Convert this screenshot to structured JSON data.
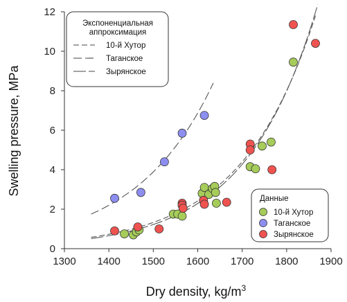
{
  "chart_data": {
    "type": "scatter",
    "title": "",
    "xlabel": "Dry density, kg/m",
    "xlabel_superscript": "3",
    "ylabel": "Swelling pressure, MPa",
    "xlim": [
      1300,
      1900
    ],
    "ylim": [
      0,
      12
    ],
    "x_ticks": [
      "1300",
      "1400",
      "1500",
      "1600",
      "1700",
      "1800",
      "1900"
    ],
    "y_ticks": [
      "0",
      "2",
      "4",
      "6",
      "8",
      "10",
      "12"
    ],
    "grid": false,
    "legends": {
      "lines": {
        "placement": "top-left",
        "title_lines": [
          "Экспоненциальная",
          "аппроксимация"
        ],
        "entries": [
          {
            "label": "10-й Хутор",
            "dash": "long-short"
          },
          {
            "label": "Таганское",
            "dash": "long"
          },
          {
            "label": "Зырянское",
            "dash": "solid-long"
          }
        ]
      },
      "points": {
        "placement": "bottom-right",
        "title": "Данные",
        "entries": [
          {
            "label": "10-й Хутор",
            "color": "#a6cc5a"
          },
          {
            "label": "Таганское",
            "color": "#8d8ef0"
          },
          {
            "label": "Зырянское",
            "color": "#ef5350"
          }
        ]
      }
    },
    "series": [
      {
        "name": "10-й Хутор",
        "color": "#a6cc5a",
        "points": [
          [
            1435,
            0.75
          ],
          [
            1455,
            0.7
          ],
          [
            1462,
            0.85
          ],
          [
            1468,
            0.95
          ],
          [
            1545,
            1.75
          ],
          [
            1555,
            1.75
          ],
          [
            1565,
            1.65
          ],
          [
            1610,
            2.8
          ],
          [
            1615,
            3.1
          ],
          [
            1625,
            2.75
          ],
          [
            1633,
            3.05
          ],
          [
            1638,
            3.15
          ],
          [
            1640,
            2.85
          ],
          [
            1642,
            2.3
          ],
          [
            1718,
            4.15
          ],
          [
            1730,
            4.05
          ],
          [
            1745,
            5.2
          ],
          [
            1765,
            5.4
          ],
          [
            1815,
            9.45
          ]
        ]
      },
      {
        "name": "Таганское",
        "color": "#8d8ef0",
        "points": [
          [
            1413,
            2.55
          ],
          [
            1472,
            2.85
          ],
          [
            1525,
            4.4
          ],
          [
            1565,
            5.85
          ],
          [
            1615,
            6.75
          ]
        ]
      },
      {
        "name": "Зырянское",
        "color": "#ef5350",
        "points": [
          [
            1413,
            0.9
          ],
          [
            1465,
            1.1
          ],
          [
            1513,
            1.0
          ],
          [
            1565,
            2.3
          ],
          [
            1565,
            2.2
          ],
          [
            1567,
            2.05
          ],
          [
            1613,
            2.45
          ],
          [
            1615,
            2.25
          ],
          [
            1665,
            2.35
          ],
          [
            1718,
            5.3
          ],
          [
            1718,
            5.0
          ],
          [
            1767,
            4.0
          ],
          [
            1815,
            11.35
          ],
          [
            1865,
            10.4
          ]
        ]
      }
    ],
    "fits": [
      {
        "name": "10-й Хутор",
        "x": [
          1360,
          1865
        ],
        "a": 0.575,
        "b": 0.005984,
        "dash": "8 4"
      },
      {
        "name": "Таганское",
        "x": [
          1360,
          1635
        ],
        "a": 1.75,
        "b": 0.0057,
        "dash": "12 5"
      },
      {
        "name": "Зырянское",
        "x": [
          1360,
          1870
        ],
        "a": 0.51,
        "b": 0.006252,
        "dash": "18 4"
      }
    ]
  }
}
